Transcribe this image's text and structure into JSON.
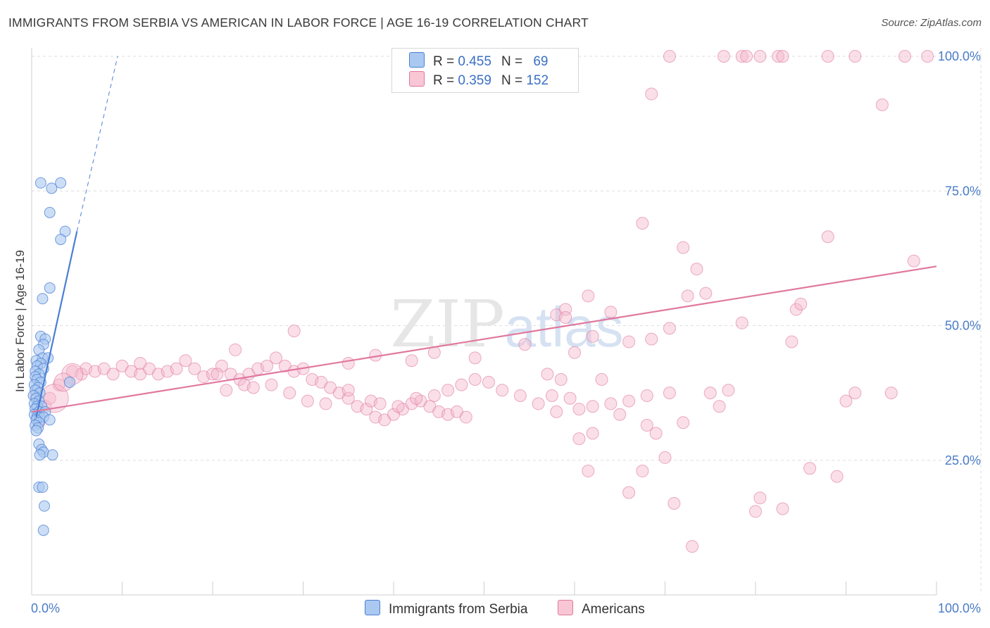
{
  "title": "IMMIGRANTS FROM SERBIA VS AMERICAN IN LABOR FORCE | AGE 16-19 CORRELATION CHART",
  "source": "Source: ZipAtlas.com",
  "colors": {
    "blue": "#4a7fd4",
    "pink": "#e0789e",
    "blue_fill": "#aac8f0",
    "pink_fill": "#f5b8cc",
    "tick": "#4a7cc7"
  },
  "legend": {
    "rows": [
      {
        "r_label": "R =",
        "r_value": "0.455",
        "n_label": "N =",
        "n_value": "69"
      },
      {
        "r_label": "R =",
        "r_value": "0.359",
        "n_label": "N =",
        "n_value": "152"
      }
    ]
  },
  "bottom_legend": {
    "series1": "Immigrants from Serbia",
    "series2": "Americans"
  },
  "chart_data": {
    "type": "scatter",
    "title": "IMMIGRANTS FROM SERBIA VS AMERICAN IN LABOR FORCE | AGE 16-19 CORRELATION CHART",
    "xlabel": "",
    "ylabel": "In Labor Force | Age 16-19",
    "xlim": [
      0,
      100
    ],
    "ylim": [
      0,
      100
    ],
    "x_tick_labels": [
      "0.0%",
      "100.0%"
    ],
    "y_tick_labels": [
      "25.0%",
      "50.0%",
      "75.0%",
      "100.0%"
    ],
    "y_ticks": [
      25,
      50,
      75,
      100
    ],
    "grid": true,
    "legend_position": "top-center",
    "series": [
      {
        "name": "Immigrants from Serbia",
        "color": "#4a7fd4",
        "R": 0.455,
        "N": 69,
        "trend": {
          "x": [
            0.5,
            5.0
          ],
          "y": [
            33.0,
            67.5
          ],
          "extended_to": [
            9.5,
            100.0
          ]
        },
        "points": [
          [
            1.0,
            76.5
          ],
          [
            3.2,
            76.5
          ],
          [
            2.2,
            75.5
          ],
          [
            2.0,
            71.0
          ],
          [
            3.7,
            67.5
          ],
          [
            3.2,
            66.0
          ],
          [
            2.0,
            57.0
          ],
          [
            1.2,
            55.0
          ],
          [
            1.0,
            48.0
          ],
          [
            1.5,
            47.5
          ],
          [
            1.3,
            46.5
          ],
          [
            0.8,
            45.5
          ],
          [
            1.2,
            44.0
          ],
          [
            1.8,
            44.0
          ],
          [
            0.5,
            43.5
          ],
          [
            1.0,
            43.0
          ],
          [
            0.6,
            42.5
          ],
          [
            1.3,
            42.0
          ],
          [
            0.4,
            41.5
          ],
          [
            0.8,
            41.0
          ],
          [
            0.4,
            40.5
          ],
          [
            0.6,
            40.0
          ],
          [
            1.0,
            39.5
          ],
          [
            4.2,
            39.5
          ],
          [
            0.3,
            39.0
          ],
          [
            0.7,
            38.5
          ],
          [
            0.4,
            38.0
          ],
          [
            0.9,
            37.5
          ],
          [
            0.2,
            37.0
          ],
          [
            0.5,
            36.5
          ],
          [
            0.8,
            36.0
          ],
          [
            0.3,
            35.5
          ],
          [
            0.6,
            35.0
          ],
          [
            1.1,
            35.0
          ],
          [
            0.4,
            34.5
          ],
          [
            0.8,
            34.0
          ],
          [
            1.5,
            34.0
          ],
          [
            0.3,
            33.5
          ],
          [
            0.6,
            33.0
          ],
          [
            0.9,
            33.0
          ],
          [
            1.3,
            33.0
          ],
          [
            0.5,
            32.5
          ],
          [
            2.0,
            32.5
          ],
          [
            0.8,
            32.0
          ],
          [
            0.4,
            31.5
          ],
          [
            0.7,
            31.0
          ],
          [
            0.5,
            30.5
          ],
          [
            0.8,
            28.0
          ],
          [
            1.1,
            27.0
          ],
          [
            1.3,
            26.5
          ],
          [
            0.9,
            26.0
          ],
          [
            2.3,
            26.0
          ],
          [
            0.8,
            20.0
          ],
          [
            1.2,
            20.0
          ],
          [
            1.4,
            16.5
          ],
          [
            1.3,
            12.0
          ]
        ]
      },
      {
        "name": "Americans",
        "color": "#e0789e",
        "R": 0.359,
        "N": 152,
        "trend": {
          "x": [
            0,
            100
          ],
          "y": [
            34.0,
            61.0
          ]
        },
        "points": [
          [
            0.5,
            37.0
          ],
          [
            1.5,
            35.0
          ],
          [
            0.8,
            32.0
          ],
          [
            2.0,
            36.5
          ],
          [
            3.0,
            39.0
          ],
          [
            4.5,
            41.5
          ],
          [
            5.5,
            41.0
          ],
          [
            6.0,
            42.0
          ],
          [
            7.0,
            41.5
          ],
          [
            8.0,
            42.0
          ],
          [
            9.0,
            41.0
          ],
          [
            10.0,
            42.5
          ],
          [
            11.0,
            41.5
          ],
          [
            12.0,
            41.0
          ],
          [
            13.0,
            42.0
          ],
          [
            14.0,
            41.0
          ],
          [
            15.0,
            41.5
          ],
          [
            16.0,
            42.0
          ],
          [
            17.0,
            43.5
          ],
          [
            18.0,
            42.0
          ],
          [
            19.0,
            40.5
          ],
          [
            20.0,
            41.0
          ],
          [
            21.0,
            42.5
          ],
          [
            22.0,
            41.0
          ],
          [
            23.0,
            40.0
          ],
          [
            24.0,
            41.0
          ],
          [
            25.0,
            42.0
          ],
          [
            26.0,
            42.5
          ],
          [
            27.0,
            44.0
          ],
          [
            28.0,
            42.5
          ],
          [
            29.0,
            41.5
          ],
          [
            30.0,
            42.0
          ],
          [
            31.0,
            40.0
          ],
          [
            32.0,
            39.5
          ],
          [
            33.0,
            38.5
          ],
          [
            34.0,
            37.5
          ],
          [
            35.0,
            36.5
          ],
          [
            36.0,
            35.0
          ],
          [
            37.0,
            34.5
          ],
          [
            38.0,
            33.0
          ],
          [
            39.0,
            32.5
          ],
          [
            40.0,
            33.5
          ],
          [
            41.0,
            34.5
          ],
          [
            42.0,
            35.5
          ],
          [
            43.0,
            36.0
          ],
          [
            44.0,
            35.0
          ],
          [
            45.0,
            34.0
          ],
          [
            46.0,
            33.5
          ],
          [
            47.0,
            34.0
          ],
          [
            48.0,
            33.0
          ],
          [
            12.0,
            43.0
          ],
          [
            20.5,
            41.0
          ],
          [
            21.5,
            38.0
          ],
          [
            23.5,
            39.0
          ],
          [
            24.5,
            38.5
          ],
          [
            26.5,
            39.0
          ],
          [
            28.5,
            37.5
          ],
          [
            30.5,
            36.0
          ],
          [
            32.5,
            35.5
          ],
          [
            35.0,
            38.0
          ],
          [
            37.5,
            36.0
          ],
          [
            38.5,
            35.5
          ],
          [
            40.5,
            35.0
          ],
          [
            42.5,
            36.5
          ],
          [
            44.5,
            37.0
          ],
          [
            46.0,
            38.0
          ],
          [
            47.5,
            39.0
          ],
          [
            49.0,
            40.0
          ],
          [
            50.5,
            39.5
          ],
          [
            52.0,
            38.0
          ],
          [
            54.0,
            37.0
          ],
          [
            56.0,
            35.5
          ],
          [
            58.0,
            34.0
          ],
          [
            60.5,
            34.5
          ],
          [
            62.0,
            35.0
          ],
          [
            64.0,
            35.5
          ],
          [
            66.0,
            36.0
          ],
          [
            68.0,
            37.0
          ],
          [
            70.5,
            37.5
          ],
          [
            22.5,
            45.5
          ],
          [
            29.0,
            49.0
          ],
          [
            35.0,
            43.0
          ],
          [
            38.0,
            44.5
          ],
          [
            42.0,
            43.5
          ],
          [
            44.5,
            45.0
          ],
          [
            49.0,
            44.0
          ],
          [
            54.5,
            46.5
          ],
          [
            58.0,
            52.0
          ],
          [
            59.0,
            53.0
          ],
          [
            61.5,
            55.5
          ],
          [
            64.0,
            52.5
          ],
          [
            66.0,
            47.0
          ],
          [
            68.5,
            47.5
          ],
          [
            70.5,
            49.5
          ],
          [
            72.5,
            55.5
          ],
          [
            74.5,
            56.0
          ],
          [
            78.5,
            50.5
          ],
          [
            84.5,
            53.0
          ],
          [
            85.0,
            54.0
          ],
          [
            84.0,
            47.0
          ],
          [
            60.5,
            29.0
          ],
          [
            61.5,
            23.0
          ],
          [
            62.0,
            30.0
          ],
          [
            63.0,
            40.0
          ],
          [
            65.0,
            33.5
          ],
          [
            66.0,
            19.0
          ],
          [
            67.5,
            23.0
          ],
          [
            68.0,
            31.5
          ],
          [
            69.0,
            30.0
          ],
          [
            70.0,
            25.5
          ],
          [
            71.0,
            17.0
          ],
          [
            72.0,
            32.0
          ],
          [
            73.0,
            9.0
          ],
          [
            75.0,
            37.5
          ],
          [
            76.0,
            35.0
          ],
          [
            77.0,
            38.0
          ],
          [
            80.0,
            15.5
          ],
          [
            80.5,
            18.0
          ],
          [
            83.0,
            16.0
          ],
          [
            86.0,
            23.5
          ],
          [
            89.0,
            22.0
          ],
          [
            90.0,
            36.0
          ],
          [
            91.0,
            37.5
          ],
          [
            95.0,
            37.5
          ],
          [
            97.5,
            62.0
          ],
          [
            67.5,
            69.0
          ],
          [
            72.0,
            64.5
          ],
          [
            73.5,
            60.5
          ],
          [
            88.0,
            66.5
          ],
          [
            68.5,
            93.0
          ],
          [
            94.0,
            91.0
          ],
          [
            70.5,
            100.0
          ],
          [
            76.5,
            100.0
          ],
          [
            78.5,
            100.0
          ],
          [
            79.0,
            100.0
          ],
          [
            80.5,
            100.0
          ],
          [
            82.5,
            100.0
          ],
          [
            83.0,
            100.0
          ],
          [
            88.0,
            100.0
          ],
          [
            91.0,
            100.0
          ],
          [
            96.5,
            100.0
          ],
          [
            99.0,
            100.0
          ],
          [
            59.0,
            51.5
          ],
          [
            60.0,
            45.0
          ],
          [
            62.0,
            48.0
          ],
          [
            57.0,
            41.0
          ],
          [
            58.5,
            40.0
          ],
          [
            57.5,
            37.0
          ],
          [
            59.5,
            36.5
          ]
        ]
      }
    ]
  }
}
